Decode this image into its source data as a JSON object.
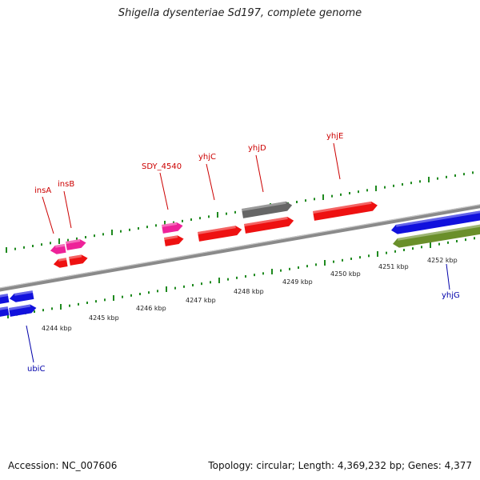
{
  "title": "Shigella dysenteriae Sd197, complete genome",
  "footer": {
    "accession": "Accession: NC_007606",
    "summary": "Topology: circular; Length: 4,369,232 bp; Genes: 4,377"
  },
  "colors": {
    "background": "#ffffff",
    "backbone": "#8a8a8a",
    "tick": "#1f8a1f",
    "gene_label_red": "#cc0000",
    "gene_label_blue": "#0000aa",
    "gene_red": "#ee1111",
    "gene_pink": "#ee2299",
    "gene_gray": "#666666",
    "gene_blue": "#1111dd",
    "gene_olive": "#6a8f2a"
  },
  "scale_labels": [
    "4244 kbp",
    "4245 kbp",
    "4246 kbp",
    "4247 kbp",
    "4248 kbp",
    "4249 kbp",
    "4250 kbp",
    "4251 kbp",
    "4252 kbp"
  ],
  "genes": [
    {
      "label": "insA",
      "color": "pink",
      "strand": "reverse"
    },
    {
      "label": "insB",
      "color": "pink",
      "strand": "forward"
    },
    {
      "label": "SDY_4540",
      "color": "pink",
      "strand": "forward"
    },
    {
      "label": "yhjC",
      "color": "red",
      "strand": "forward"
    },
    {
      "label": "yhjD",
      "color": "gray",
      "strand": "forward"
    },
    {
      "label": "yhjE",
      "color": "red",
      "strand": "forward"
    },
    {
      "label": "ubiC",
      "color": "blue",
      "strand": "reverse"
    },
    {
      "label": "yhjG",
      "color": "blue",
      "strand": "reverse"
    },
    {
      "label": "",
      "color": "olive",
      "strand": "reverse"
    }
  ]
}
